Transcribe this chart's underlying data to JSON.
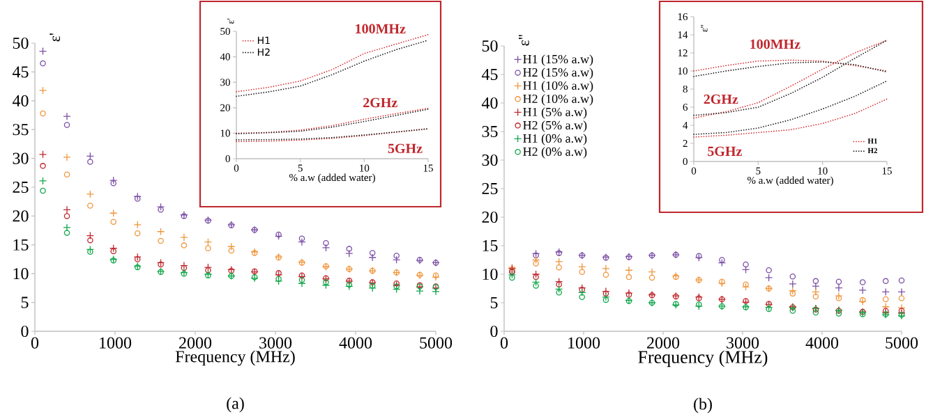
{
  "chart_data": [
    {
      "type": "scatter",
      "xlabel": "Frequency (MHz)",
      "ylabel": "ε'",
      "annotations": [
        "(a)"
      ],
      "xlim": [
        0,
        5000
      ],
      "ylim": [
        0,
        50
      ],
      "xticks": [
        0,
        1000,
        2000,
        3000,
        4000,
        5000
      ],
      "yticks": [
        0,
        5,
        10,
        15,
        20,
        25,
        30,
        35,
        40,
        45,
        50
      ],
      "legend": false,
      "x": [
        100,
        400,
        690,
        980,
        1280,
        1570,
        1860,
        2160,
        2450,
        2740,
        3040,
        3330,
        3630,
        3920,
        4210,
        4510,
        4800,
        5000
      ],
      "series": [
        {
          "color": "#7b4fa6",
          "marker": "cross",
          "values": [
            48.6,
            37.3,
            30.4,
            26.2,
            23.4,
            21.6,
            20.2,
            19.3,
            18.5,
            17.6,
            16.5,
            15.5,
            14.5,
            13.5,
            12.8,
            12.4,
            12.3,
            11.9
          ]
        },
        {
          "color": "#7b4fa6",
          "marker": "circle",
          "values": [
            46.5,
            35.8,
            29.4,
            25.7,
            23.0,
            21.1,
            20.0,
            19.2,
            18.4,
            17.6,
            16.8,
            16.1,
            15.3,
            14.3,
            13.6,
            13.1,
            12.4,
            11.9
          ]
        },
        {
          "color": "#f0963c",
          "marker": "cross",
          "values": [
            41.8,
            30.2,
            23.8,
            20.5,
            18.5,
            17.3,
            16.3,
            15.5,
            14.7,
            13.8,
            12.9,
            12.0,
            11.2,
            10.8,
            10.5,
            10.2,
            9.7,
            9.4
          ]
        },
        {
          "color": "#f0963c",
          "marker": "circle",
          "values": [
            37.8,
            27.2,
            21.8,
            19.0,
            17.0,
            15.7,
            14.9,
            14.4,
            14.0,
            13.6,
            12.8,
            11.9,
            11.3,
            10.8,
            10.5,
            10.2,
            9.8,
            9.7
          ]
        },
        {
          "color": "#c0272d",
          "marker": "cross",
          "values": [
            30.7,
            21.1,
            16.6,
            14.4,
            12.9,
            11.9,
            11.4,
            11.1,
            10.7,
            10.3,
            9.8,
            9.5,
            9.1,
            8.7,
            8.4,
            8.0,
            7.7,
            7.5
          ]
        },
        {
          "color": "#c0272d",
          "marker": "circle",
          "values": [
            28.7,
            20.0,
            15.8,
            13.9,
            12.5,
            11.6,
            11.0,
            10.6,
            10.5,
            10.4,
            10.1,
            9.7,
            9.2,
            8.8,
            8.5,
            8.3,
            8.0,
            7.8
          ]
        },
        {
          "color": "#10a64a",
          "marker": "cross",
          "values": [
            26.1,
            18.0,
            14.2,
            12.5,
            11.3,
            10.4,
            10.2,
            9.9,
            9.6,
            9.2,
            8.7,
            8.3,
            8.0,
            7.8,
            7.5,
            7.3,
            7.0,
            6.9
          ]
        },
        {
          "color": "#10a64a",
          "marker": "circle",
          "values": [
            24.4,
            17.1,
            13.8,
            12.3,
            11.1,
            10.3,
            10.0,
            9.7,
            9.6,
            9.4,
            9.1,
            8.9,
            8.5,
            8.1,
            7.9,
            7.8,
            7.8,
            7.7
          ]
        }
      ]
    },
    {
      "type": "line",
      "line_style": "dotted",
      "marker": "none",
      "xlabel": "% a.w (added  water)",
      "ylabel": "ε'",
      "annotations": [
        "100MHz",
        "2GHz",
        "5GHz"
      ],
      "xlim": [
        0,
        15
      ],
      "ylim": [
        0,
        50
      ],
      "xticks": [
        0,
        5,
        10,
        15
      ],
      "yticks": [
        0,
        10,
        20,
        30,
        40,
        50
      ],
      "legend": "top left",
      "x": [
        0,
        2.5,
        5,
        7.5,
        10,
        12.5,
        15
      ],
      "series": [
        {
          "name": "H1",
          "color": "#d9383a",
          "values": [
            26.3,
            28.0,
            30.5,
            35.0,
            41.3,
            45.0,
            48.7
          ]
        },
        {
          "name": "H2",
          "color": "#231f20",
          "values": [
            24.5,
            26.2,
            28.5,
            33.0,
            38.3,
            42.8,
            46.5
          ]
        },
        {
          "color": "#d9383a",
          "values": [
            10.0,
            10.3,
            11.2,
            13.0,
            15.5,
            17.7,
            19.8
          ]
        },
        {
          "color": "#231f20",
          "values": [
            9.8,
            10.2,
            10.8,
            12.4,
            14.6,
            17.0,
            19.4
          ]
        },
        {
          "color": "#d9383a",
          "values": [
            6.7,
            6.9,
            7.3,
            8.0,
            9.1,
            10.4,
            11.8
          ]
        },
        {
          "color": "#231f20",
          "values": [
            7.4,
            7.5,
            7.7,
            8.3,
            9.3,
            10.5,
            11.7
          ]
        }
      ]
    },
    {
      "type": "scatter",
      "xlabel": "Frequency (MHz)",
      "ylabel": "ε''",
      "annotations": [
        "(b)"
      ],
      "xlim": [
        0,
        5000
      ],
      "ylim": [
        0,
        50
      ],
      "xticks": [
        0,
        1000,
        2000,
        3000,
        4000,
        5000
      ],
      "yticks": [
        0,
        5,
        10,
        15,
        20,
        25,
        30,
        35,
        40,
        45,
        50
      ],
      "legend": "top left",
      "x": [
        100,
        400,
        690,
        980,
        1280,
        1570,
        1860,
        2160,
        2450,
        2740,
        3040,
        3330,
        3630,
        3920,
        4210,
        4510,
        4800,
        5000
      ],
      "series": [
        {
          "name": "H1 (15% a.w)",
          "color": "#7b4fa6",
          "marker": "cross",
          "values": [
            null,
            13.6,
            13.9,
            13.3,
            13.0,
            13.1,
            13.3,
            13.4,
            12.9,
            12.0,
            10.8,
            9.4,
            8.3,
            7.9,
            7.6,
            7.2,
            6.9,
            6.9
          ]
        },
        {
          "name": "H2 (15% a.w)",
          "color": "#7b4fa6",
          "marker": "circle",
          "values": [
            10.5,
            13.3,
            13.7,
            13.3,
            12.9,
            13.0,
            13.3,
            13.4,
            13.2,
            12.5,
            11.7,
            10.7,
            9.6,
            8.8,
            8.7,
            8.6,
            8.8,
            8.9
          ]
        },
        {
          "name": "H1 (10% a.w)",
          "color": "#f0963c",
          "marker": "cross",
          "values": [
            11.2,
            12.5,
            12.2,
            11.3,
            11.0,
            10.7,
            10.4,
            9.7,
            9.0,
            8.4,
            7.8,
            7.5,
            7.1,
            6.9,
            6.2,
            5.2,
            4.3,
            4.1
          ]
        },
        {
          "name": "H2 (10% a.w)",
          "color": "#f0963c",
          "marker": "circle",
          "values": [
            10.8,
            11.9,
            11.2,
            10.4,
            9.9,
            9.5,
            9.4,
            9.5,
            9.0,
            8.7,
            8.2,
            7.5,
            6.6,
            6.1,
            5.8,
            5.5,
            5.6,
            5.8
          ]
        },
        {
          "name": "H1 (5% a.w)",
          "color": "#c0272d",
          "marker": "cross",
          "values": [
            11.0,
            10.0,
            8.7,
            7.6,
            7.0,
            6.7,
            6.4,
            6.2,
            6.0,
            5.6,
            5.1,
            4.7,
            4.3,
            4.0,
            3.7,
            3.4,
            3.3,
            3.2
          ]
        },
        {
          "name": "H2 (5% a.w)",
          "color": "#c0272d",
          "marker": "circle",
          "values": [
            10.4,
            9.5,
            8.2,
            7.3,
            6.6,
            6.4,
            6.3,
            6.1,
            5.8,
            5.6,
            5.3,
            4.8,
            4.2,
            3.8,
            3.6,
            3.4,
            3.6,
            3.6
          ]
        },
        {
          "name": "H1 (0% a.w)",
          "color": "#10a64a",
          "marker": "cross",
          "values": [
            9.9,
            8.6,
            7.4,
            6.8,
            6.0,
            5.4,
            5.0,
            4.6,
            4.4,
            4.4,
            4.3,
            4.2,
            4.1,
            4.0,
            3.7,
            3.3,
            2.9,
            2.7
          ]
        },
        {
          "name": "H2 (0% a.w)",
          "color": "#10a64a",
          "marker": "circle",
          "values": [
            9.4,
            8.0,
            6.8,
            6.0,
            5.5,
            5.3,
            5.0,
            4.8,
            4.7,
            4.4,
            4.2,
            3.9,
            3.6,
            3.3,
            3.1,
            3.0,
            3.0,
            2.9
          ]
        }
      ]
    },
    {
      "type": "line",
      "line_style": "dotted",
      "marker": "none",
      "xlabel": "% a.w (added  water)",
      "ylabel": "ε''",
      "annotations": [
        "100MHz",
        "2GHz",
        "5GHz"
      ],
      "xlim": [
        0,
        15
      ],
      "ylim": [
        0,
        16
      ],
      "xticks": [
        0,
        5,
        10,
        15
      ],
      "yticks": [
        0,
        2,
        4,
        6,
        8,
        10,
        12,
        14,
        16
      ],
      "legend": "bottom right",
      "x": [
        0,
        2.5,
        5,
        7.5,
        10,
        12.5,
        15
      ],
      "series": [
        {
          "name": "H1",
          "color": "#d9383a",
          "values": [
            10.0,
            10.6,
            11.1,
            11.2,
            11.1,
            10.6,
            10.0
          ]
        },
        {
          "name": "H2",
          "color": "#231f20",
          "values": [
            9.4,
            10.0,
            10.5,
            10.9,
            11.0,
            10.7,
            9.9
          ]
        },
        {
          "color": "#d9383a",
          "values": [
            4.8,
            5.5,
            6.5,
            8.3,
            10.2,
            12.0,
            13.4
          ]
        },
        {
          "color": "#231f20",
          "values": [
            5.1,
            5.4,
            6.0,
            7.5,
            9.3,
            11.4,
            13.4
          ]
        },
        {
          "color": "#d9383a",
          "values": [
            2.7,
            2.9,
            3.2,
            3.5,
            4.2,
            5.3,
            6.9
          ]
        },
        {
          "color": "#231f20",
          "values": [
            3.0,
            3.2,
            3.7,
            4.6,
            5.8,
            7.2,
            8.9
          ]
        }
      ]
    }
  ]
}
